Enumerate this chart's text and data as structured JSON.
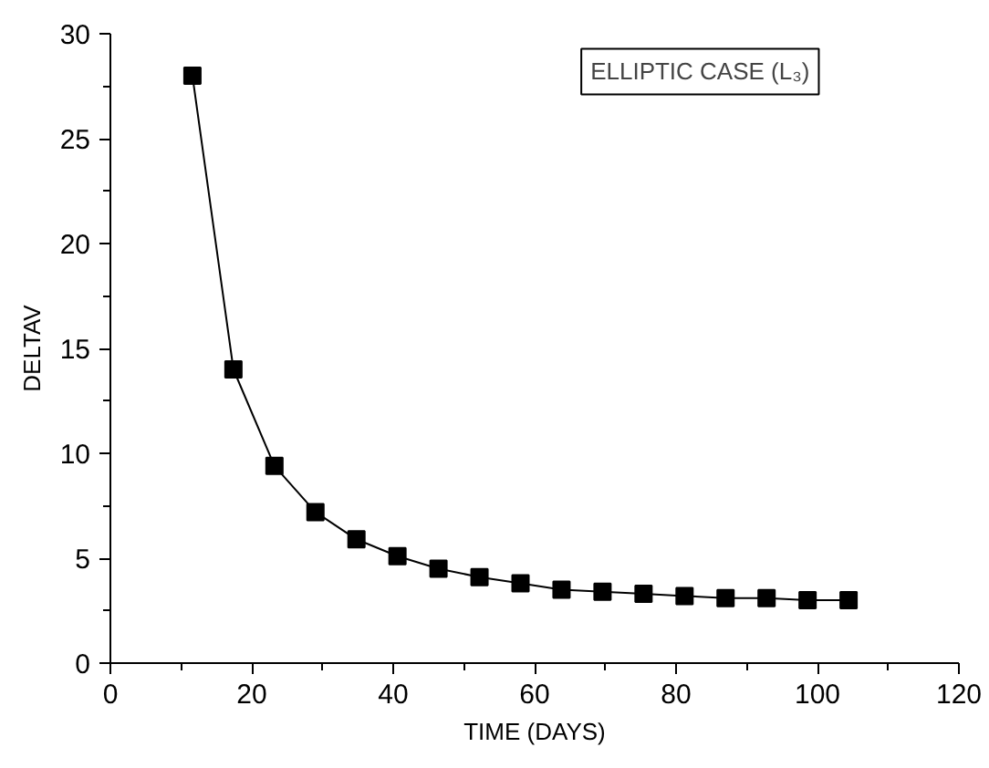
{
  "chart_data": {
    "type": "line",
    "xlabel": "TIME (DAYS)",
    "ylabel": "DELTAV",
    "annotations": [
      "ELLIPTIC CASE (L₃)"
    ],
    "x": [
      11.6,
      17.4,
      23.2,
      29,
      34.8,
      40.6,
      46.4,
      52.2,
      58,
      63.8,
      69.6,
      75.4,
      81.2,
      87,
      92.8,
      98.6,
      104.4
    ],
    "series": [
      {
        "color": "#000000",
        "values": [
          28,
          14,
          9.4,
          7.2,
          5.9,
          5.1,
          4.5,
          4.1,
          3.8,
          3.5,
          3.4,
          3.3,
          3.2,
          3.1,
          3.1,
          3.0,
          3.0
        ]
      }
    ],
    "xlim": [
      0,
      120
    ],
    "ylim": [
      0,
      30
    ],
    "xticks": [
      0,
      20,
      40,
      60,
      80,
      100,
      120
    ],
    "yticks": [
      0,
      5,
      10,
      15,
      20,
      25,
      30
    ],
    "grid": false,
    "marker": "square",
    "line_style": "solid"
  }
}
